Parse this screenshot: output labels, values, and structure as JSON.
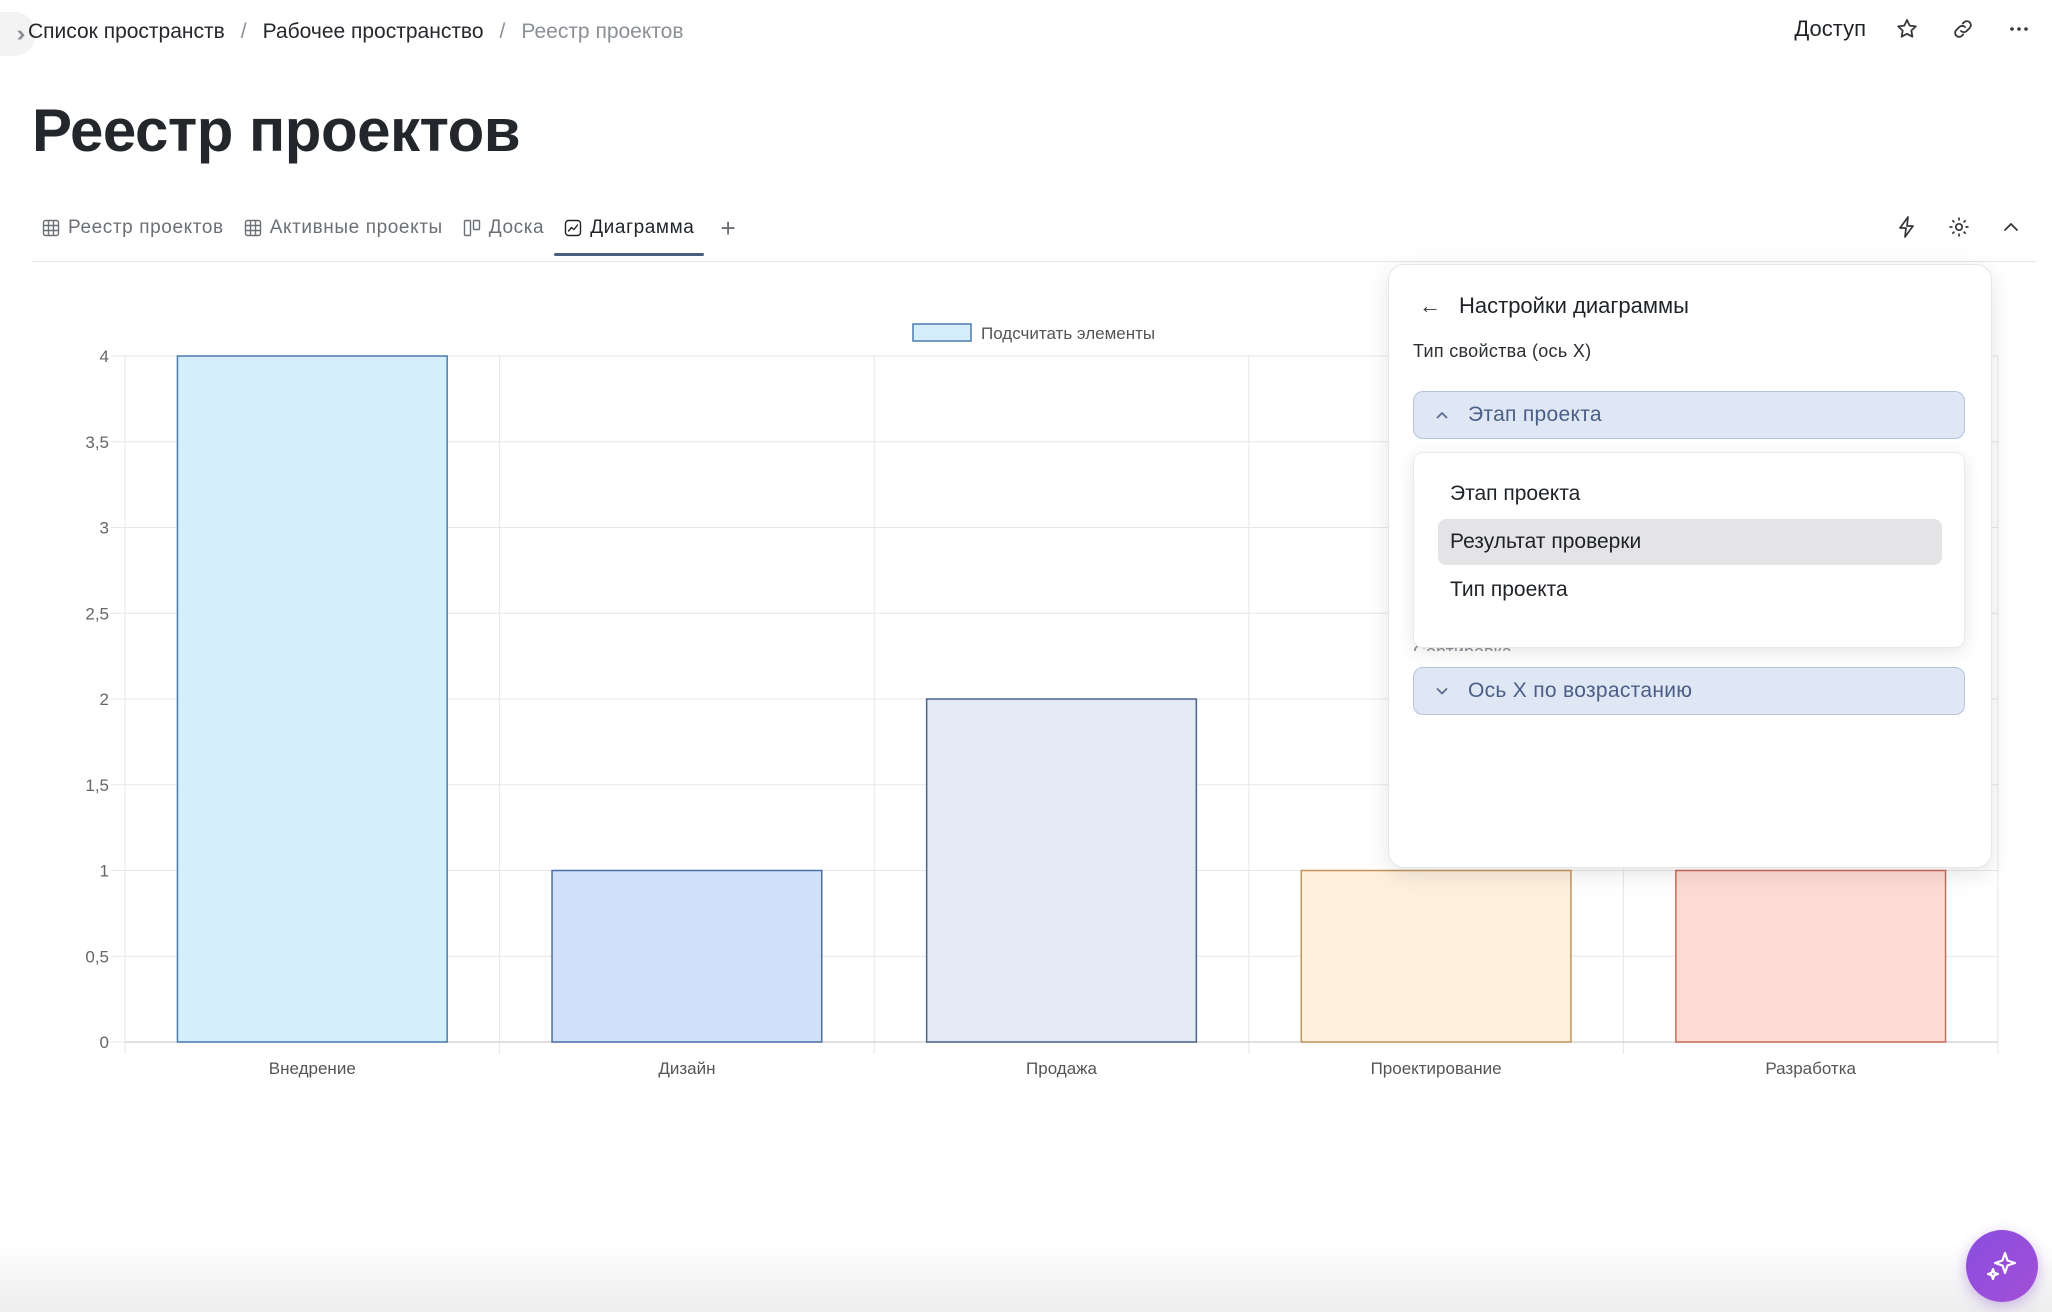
{
  "breadcrumb": [
    "Список пространств",
    "Рабочее пространство",
    "Реестр проектов"
  ],
  "top_actions": {
    "access_label": "Доступ"
  },
  "page": {
    "title": "Реестр проектов"
  },
  "tabs": [
    {
      "label": "Реестр проектов",
      "icon": "table-icon"
    },
    {
      "label": "Активные проекты",
      "icon": "table-icon"
    },
    {
      "label": "Доска",
      "icon": "board-icon"
    },
    {
      "label": "Диаграмма",
      "icon": "chart-icon",
      "active": true
    }
  ],
  "panel": {
    "title": "Настройки диаграммы",
    "x_prop_label": "Тип свойства (ось X)",
    "x_prop_value": "Этап проекта",
    "options": [
      "Этап проекта",
      "Результат проверки",
      "Тип проекта"
    ],
    "sort_label": "Сортировка",
    "sort_value": "Ось X по возрастанию"
  },
  "chart_data": {
    "type": "bar",
    "categories": [
      "Внедрение",
      "Дизайн",
      "Продажа",
      "Проектирование",
      "Разработка"
    ],
    "series": [
      {
        "name": "Подсчитать элементы",
        "values": [
          4,
          1,
          2,
          1,
          1
        ]
      }
    ],
    "ylim": [
      0,
      4
    ],
    "yticks": [
      "0",
      "0,5",
      "1",
      "1,5",
      "2",
      "2,5",
      "3",
      "3,5",
      "4"
    ],
    "grid": true,
    "legend": "top-center",
    "bar_colors": [
      {
        "fill": "#d5eefb",
        "stroke": "#4a7cb0"
      },
      {
        "fill": "#d2e1fb",
        "stroke": "#4a6fa8"
      },
      {
        "fill": "#e3eaf5",
        "stroke": "#4b6389"
      },
      {
        "fill": "#fdf0dd",
        "stroke": "#c5935a"
      },
      {
        "fill": "#fddbd4",
        "stroke": "#c96b5a"
      }
    ]
  }
}
